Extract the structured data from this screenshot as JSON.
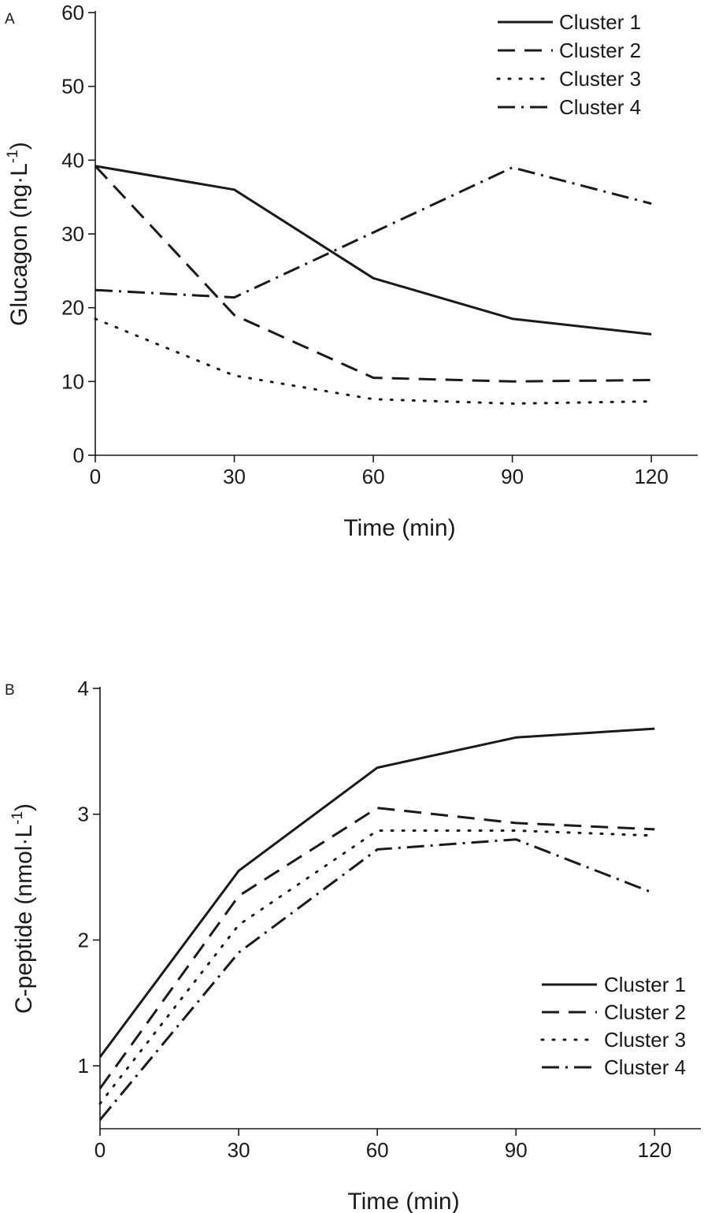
{
  "styles": {
    "line_color": "#1a1a1a",
    "dash_patterns": {
      "solid": "",
      "dash": "22 12",
      "dot": "2 12",
      "dashdot": "22 8 3 8"
    }
  },
  "chart_data": [
    {
      "type": "line",
      "panel_label": "A",
      "title": "",
      "xlabel": "Time (min)",
      "ylabel_main": "Glucagon (ng·L",
      "ylabel_sup": "-1",
      "ylabel_close": ")",
      "xlim": [
        0,
        130
      ],
      "ylim": [
        0,
        60
      ],
      "xticks": [
        0,
        30,
        60,
        90,
        120
      ],
      "yticks": [
        0,
        10,
        20,
        30,
        40,
        50,
        60
      ],
      "legend_position": "top-right",
      "x": [
        0,
        30,
        60,
        90,
        120
      ],
      "series": [
        {
          "name": "Cluster 1",
          "style": "solid",
          "values": [
            39.2,
            36.0,
            24.0,
            18.5,
            16.4
          ]
        },
        {
          "name": "Cluster 2",
          "style": "dash",
          "values": [
            39.2,
            19.0,
            10.5,
            10.0,
            10.2
          ]
        },
        {
          "name": "Cluster 3",
          "style": "dot",
          "values": [
            18.5,
            10.8,
            7.6,
            7.0,
            7.3
          ]
        },
        {
          "name": "Cluster 4",
          "style": "dashdot",
          "values": [
            22.4,
            21.4,
            30.2,
            39.0,
            34.1
          ]
        }
      ]
    },
    {
      "type": "line",
      "panel_label": "B",
      "title": "",
      "xlabel": "Time (min)",
      "ylabel_main": "C-peptide (nmol·L",
      "ylabel_sup": "-1",
      "ylabel_close": ")",
      "xlim": [
        0,
        130
      ],
      "ylim": [
        0.5,
        4
      ],
      "xticks": [
        0,
        30,
        60,
        90,
        120
      ],
      "yticks": [
        1,
        2,
        3,
        4
      ],
      "legend_position": "bottom-right",
      "x": [
        0,
        30,
        60,
        90,
        120
      ],
      "series": [
        {
          "name": "Cluster 1",
          "style": "solid",
          "values": [
            1.07,
            2.55,
            3.37,
            3.61,
            3.68
          ]
        },
        {
          "name": "Cluster 2",
          "style": "dash",
          "values": [
            0.82,
            2.35,
            3.05,
            2.93,
            2.88
          ]
        },
        {
          "name": "Cluster 3",
          "style": "dot",
          "values": [
            0.7,
            2.12,
            2.87,
            2.87,
            2.83
          ]
        },
        {
          "name": "Cluster 4",
          "style": "dashdot",
          "values": [
            0.57,
            1.9,
            2.72,
            2.8,
            2.37
          ]
        }
      ]
    }
  ]
}
